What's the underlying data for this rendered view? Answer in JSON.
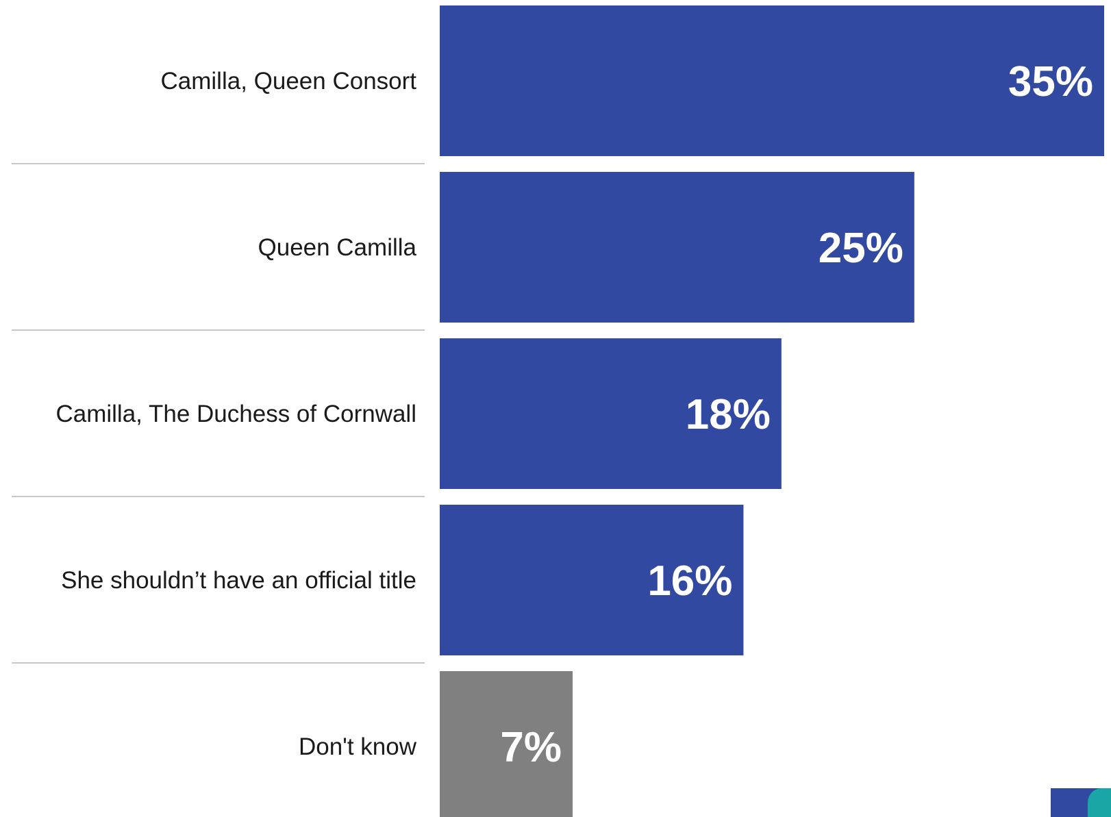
{
  "chart_data": {
    "type": "bar",
    "orientation": "horizontal",
    "title": "",
    "xlabel": "",
    "ylabel": "",
    "categories": [
      "Camilla, Queen Consort",
      "Queen Camilla",
      "Camilla, The Duchess of Cornwall",
      "She shouldn’t have an official title",
      "Don't know"
    ],
    "values": [
      35,
      25,
      18,
      16,
      7
    ],
    "value_labels": [
      "35%",
      "25%",
      "18%",
      "16%",
      "7%"
    ],
    "unit": "%",
    "colors": [
      "#3149a0",
      "#3149a0",
      "#3149a0",
      "#3149a0",
      "#808080"
    ],
    "xlim": [
      0,
      35
    ],
    "grid": false,
    "legend": "none"
  }
}
